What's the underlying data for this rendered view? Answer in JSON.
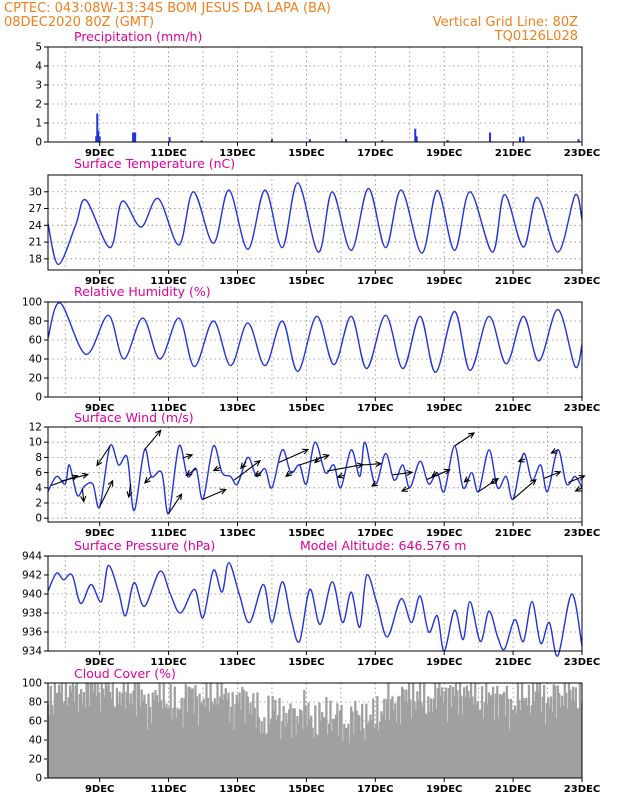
{
  "header": {
    "line1": "CPTEC:  043:08W-13:34S  BOM JESUS DA LAPA (BA)",
    "line2_left": "08DEC2020 80Z (GMT)",
    "line2_right": "Vertical Grid Line: 80Z",
    "line3_right": "TQ0126L028"
  },
  "colors": {
    "header": "#f08020",
    "panel_title": "#e0009a",
    "series": "#2233dd",
    "cloud": "#a0a0a0",
    "wind_arrow": "#000000"
  },
  "chart_data": [
    {
      "id": "precip",
      "type": "bar",
      "title": "Precipitation (mm/h)",
      "ylim": [
        0,
        5
      ],
      "yticks": [
        "0",
        "1",
        "2",
        "3",
        "4",
        "5"
      ],
      "xticks": [
        "9DEC",
        "11DEC",
        "13DEC",
        "15DEC",
        "17DEC",
        "19DEC",
        "21DEC",
        "23DEC"
      ],
      "grid": true,
      "bars": [
        {
          "day": 8.9,
          "v": 0.3
        },
        {
          "day": 8.93,
          "v": 1.5
        },
        {
          "day": 8.96,
          "v": 0.6
        },
        {
          "day": 9.0,
          "v": 0.3
        },
        {
          "day": 9.97,
          "v": 0.5
        },
        {
          "day": 10.0,
          "v": 0.5
        },
        {
          "day": 10.03,
          "v": 0.5
        },
        {
          "day": 11.03,
          "v": 0.25
        },
        {
          "day": 11.96,
          "v": 0.08
        },
        {
          "day": 14.0,
          "v": 0.15
        },
        {
          "day": 15.1,
          "v": 0.15
        },
        {
          "day": 16.15,
          "v": 0.15
        },
        {
          "day": 17.2,
          "v": 0.1
        },
        {
          "day": 18.16,
          "v": 0.7
        },
        {
          "day": 18.2,
          "v": 0.3
        },
        {
          "day": 19.1,
          "v": 0.1
        },
        {
          "day": 20.33,
          "v": 0.5
        },
        {
          "day": 21.2,
          "v": 0.25
        },
        {
          "day": 21.3,
          "v": 0.3
        },
        {
          "day": 22.9,
          "v": 0.15
        }
      ]
    },
    {
      "id": "temp",
      "type": "line",
      "title": "Surface Temperature (nC)",
      "ylim": [
        16,
        33
      ],
      "yticks": [
        "18",
        "21",
        "24",
        "27",
        "30"
      ],
      "xticks": [
        "9DEC",
        "11DEC",
        "13DEC",
        "15DEC",
        "17DEC",
        "19DEC",
        "21DEC",
        "23DEC"
      ],
      "grid": true,
      "points": [
        [
          7.5,
          24.3
        ],
        [
          7.8,
          17.0
        ],
        [
          8.3,
          24.0
        ],
        [
          8.6,
          28.5
        ],
        [
          9.3,
          20.0
        ],
        [
          9.65,
          28.3
        ],
        [
          10.2,
          23.7
        ],
        [
          10.7,
          28.8
        ],
        [
          11.3,
          20.5
        ],
        [
          11.72,
          30.0
        ],
        [
          12.3,
          20.8
        ],
        [
          12.75,
          30.3
        ],
        [
          13.3,
          19.7
        ],
        [
          13.8,
          30.3
        ],
        [
          14.3,
          20.0
        ],
        [
          14.75,
          31.6
        ],
        [
          15.35,
          19.2
        ],
        [
          15.75,
          30.0
        ],
        [
          16.3,
          19.5
        ],
        [
          16.8,
          30.6
        ],
        [
          17.3,
          20.0
        ],
        [
          17.75,
          30.3
        ],
        [
          18.35,
          19.0
        ],
        [
          18.8,
          30.2
        ],
        [
          19.3,
          19.5
        ],
        [
          19.75,
          30.0
        ],
        [
          20.4,
          19.2
        ],
        [
          20.75,
          29.5
        ],
        [
          21.3,
          20.1
        ],
        [
          21.7,
          29.0
        ],
        [
          22.3,
          19.2
        ],
        [
          22.8,
          29.4
        ],
        [
          23.0,
          25.0
        ]
      ]
    },
    {
      "id": "rh",
      "type": "line",
      "title": "Relative Humidity (%)",
      "ylim": [
        0,
        100
      ],
      "yticks": [
        "0",
        "20",
        "40",
        "60",
        "80",
        "100"
      ],
      "xticks": [
        "9DEC",
        "11DEC",
        "13DEC",
        "15DEC",
        "17DEC",
        "19DEC",
        "21DEC",
        "23DEC"
      ],
      "grid": true,
      "points": [
        [
          7.5,
          62
        ],
        [
          7.85,
          99
        ],
        [
          8.6,
          45
        ],
        [
          9.25,
          86
        ],
        [
          9.7,
          40
        ],
        [
          10.25,
          83
        ],
        [
          10.75,
          40
        ],
        [
          11.3,
          83
        ],
        [
          11.75,
          32
        ],
        [
          12.3,
          80
        ],
        [
          12.8,
          33
        ],
        [
          13.3,
          78
        ],
        [
          13.8,
          33
        ],
        [
          14.3,
          80
        ],
        [
          14.75,
          27
        ],
        [
          15.3,
          85
        ],
        [
          15.8,
          34
        ],
        [
          16.3,
          85
        ],
        [
          16.75,
          30
        ],
        [
          17.3,
          86
        ],
        [
          17.8,
          30
        ],
        [
          18.3,
          85
        ],
        [
          18.75,
          26
        ],
        [
          19.3,
          90
        ],
        [
          19.75,
          28
        ],
        [
          20.3,
          85
        ],
        [
          20.8,
          35
        ],
        [
          21.3,
          85
        ],
        [
          21.75,
          38
        ],
        [
          22.3,
          92
        ],
        [
          22.8,
          32
        ],
        [
          23.0,
          55
        ]
      ]
    },
    {
      "id": "wind",
      "type": "line",
      "title": "Surface Wind (m/s)",
      "ylim": [
        -0.5,
        12
      ],
      "yticks": [
        "0",
        "2",
        "4",
        "6",
        "8",
        "10",
        "12"
      ],
      "xticks": [
        "9DEC",
        "11DEC",
        "13DEC",
        "15DEC",
        "17DEC",
        "19DEC",
        "21DEC",
        "23DEC"
      ],
      "grid": true,
      "points": [
        [
          7.5,
          3.5
        ],
        [
          7.75,
          5.5
        ],
        [
          8.0,
          4.5
        ],
        [
          8.12,
          7.0
        ],
        [
          8.35,
          3.0
        ],
        [
          8.55,
          4.2
        ],
        [
          8.8,
          4.5
        ],
        [
          9.0,
          1.5
        ],
        [
          9.3,
          9.5
        ],
        [
          9.55,
          7.0
        ],
        [
          9.8,
          8.0
        ],
        [
          10.0,
          1.0
        ],
        [
          10.3,
          9.0
        ],
        [
          10.5,
          5.5
        ],
        [
          10.8,
          6.0
        ],
        [
          11.0,
          0.6
        ],
        [
          11.3,
          9.5
        ],
        [
          11.55,
          5.5
        ],
        [
          11.8,
          6.5
        ],
        [
          12.0,
          2.5
        ],
        [
          12.3,
          9.5
        ],
        [
          12.55,
          6.0
        ],
        [
          12.8,
          5.5
        ],
        [
          13.0,
          4.5
        ],
        [
          13.3,
          8.0
        ],
        [
          13.55,
          5.5
        ],
        [
          13.8,
          6.5
        ],
        [
          14.0,
          4.0
        ],
        [
          14.3,
          9.0
        ],
        [
          14.55,
          6.0
        ],
        [
          14.8,
          7.0
        ],
        [
          15.0,
          4.5
        ],
        [
          15.25,
          10.0
        ],
        [
          15.55,
          6.0
        ],
        [
          15.8,
          7.0
        ],
        [
          16.0,
          4.0
        ],
        [
          16.3,
          9.0
        ],
        [
          16.55,
          5.5
        ],
        [
          16.7,
          10.0
        ],
        [
          17.0,
          4.5
        ],
        [
          17.3,
          8.5
        ],
        [
          17.55,
          5.0
        ],
        [
          17.8,
          7.0
        ],
        [
          18.0,
          4.0
        ],
        [
          18.3,
          7.5
        ],
        [
          18.55,
          4.5
        ],
        [
          18.8,
          6.0
        ],
        [
          19.0,
          3.5
        ],
        [
          19.3,
          9.5
        ],
        [
          19.55,
          4.0
        ],
        [
          19.8,
          6.0
        ],
        [
          20.0,
          3.5
        ],
        [
          20.3,
          9.0
        ],
        [
          20.55,
          4.0
        ],
        [
          20.8,
          5.5
        ],
        [
          21.0,
          2.5
        ],
        [
          21.3,
          8.5
        ],
        [
          21.55,
          5.0
        ],
        [
          21.8,
          7.0
        ],
        [
          22.0,
          3.5
        ],
        [
          22.3,
          9.0
        ],
        [
          22.55,
          4.5
        ],
        [
          22.8,
          5.5
        ],
        [
          23.0,
          4.0
        ]
      ],
      "arrows": [
        {
          "day": 7.6,
          "u": 4,
          "v": 1.5
        },
        {
          "day": 7.9,
          "u": 4,
          "v": 1
        },
        {
          "day": 8.5,
          "u": 0.2,
          "v": -2
        },
        {
          "day": 9.0,
          "u": 2,
          "v": 4
        },
        {
          "day": 9.3,
          "u": -2,
          "v": -3
        },
        {
          "day": 9.9,
          "u": -0.3,
          "v": -2
        },
        {
          "day": 10.3,
          "u": 2.5,
          "v": 3
        },
        {
          "day": 10.5,
          "u": -1,
          "v": -1
        },
        {
          "day": 11.0,
          "u": 2,
          "v": 3
        },
        {
          "day": 11.4,
          "u": 1.5,
          "v": 0.5
        },
        {
          "day": 11.8,
          "u": -1.5,
          "v": -1
        },
        {
          "day": 12.0,
          "u": 3.5,
          "v": 1.5
        },
        {
          "day": 12.5,
          "u": -1,
          "v": -0.5
        },
        {
          "day": 12.9,
          "u": 4,
          "v": 3
        },
        {
          "day": 13.25,
          "u": -0.8,
          "v": -1
        },
        {
          "day": 13.7,
          "u": -1,
          "v": -0.6
        },
        {
          "day": 14.2,
          "u": 4.5,
          "v": 2
        },
        {
          "day": 14.6,
          "u": -1,
          "v": -0.8
        },
        {
          "day": 14.8,
          "u": 4.5,
          "v": 1.5
        },
        {
          "day": 15.4,
          "u": -0.8,
          "v": -0.8
        },
        {
          "day": 15.6,
          "u": 5.5,
          "v": 1
        },
        {
          "day": 16.1,
          "u": -1,
          "v": -0.3
        },
        {
          "day": 16.6,
          "u": 3,
          "v": 0.2
        },
        {
          "day": 17.0,
          "u": -0.5,
          "v": -0.3
        },
        {
          "day": 17.5,
          "u": 3,
          "v": 0.4
        },
        {
          "day": 18.0,
          "u": -1.2,
          "v": -0.5
        },
        {
          "day": 18.5,
          "u": 3.5,
          "v": 1.5
        },
        {
          "day": 18.8,
          "u": -0.8,
          "v": -0.6
        },
        {
          "day": 19.3,
          "u": 3,
          "v": 2
        },
        {
          "day": 19.7,
          "u": -0.6,
          "v": -0.5
        },
        {
          "day": 20.0,
          "u": 3,
          "v": 2
        },
        {
          "day": 20.5,
          "u": -0.8,
          "v": -0.5
        },
        {
          "day": 21.0,
          "u": 3.5,
          "v": 3
        },
        {
          "day": 21.35,
          "u": -1,
          "v": -0.4
        },
        {
          "day": 21.9,
          "u": 2.5,
          "v": 1
        },
        {
          "day": 22.3,
          "u": -1,
          "v": -0.5
        },
        {
          "day": 22.6,
          "u": 2.5,
          "v": 1
        },
        {
          "day": 23.0,
          "u": -1,
          "v": -0.5
        }
      ]
    },
    {
      "id": "pressure",
      "type": "line",
      "title": "Surface Pressure (hPa)",
      "annotation": "Model Altitude: 646.576 m",
      "ylim": [
        934,
        944
      ],
      "yticks": [
        "934",
        "936",
        "938",
        "940",
        "942",
        "944"
      ],
      "xticks": [
        "9DEC",
        "11DEC",
        "13DEC",
        "15DEC",
        "17DEC",
        "19DEC",
        "21DEC",
        "23DEC"
      ],
      "grid": true,
      "points": [
        [
          7.5,
          940.3
        ],
        [
          7.75,
          942.2
        ],
        [
          7.95,
          941.5
        ],
        [
          8.2,
          942.0
        ],
        [
          8.45,
          939.0
        ],
        [
          8.75,
          941.0
        ],
        [
          9.05,
          939.2
        ],
        [
          9.25,
          943.0
        ],
        [
          9.55,
          940.2
        ],
        [
          9.75,
          937.7
        ],
        [
          10.0,
          941.2
        ],
        [
          10.3,
          938.7
        ],
        [
          10.75,
          942.4
        ],
        [
          11.05,
          940.0
        ],
        [
          11.35,
          938.0
        ],
        [
          11.75,
          940.5
        ],
        [
          12.0,
          937.5
        ],
        [
          12.3,
          942.5
        ],
        [
          12.55,
          940.2
        ],
        [
          12.75,
          943.3
        ],
        [
          13.05,
          940.0
        ],
        [
          13.35,
          937.0
        ],
        [
          13.75,
          941.0
        ],
        [
          14.0,
          937.0
        ],
        [
          14.3,
          941.3
        ],
        [
          14.55,
          937.5
        ],
        [
          14.8,
          935.0
        ],
        [
          15.1,
          940.5
        ],
        [
          15.4,
          936.8
        ],
        [
          15.75,
          941.3
        ],
        [
          16.05,
          937.0
        ],
        [
          16.3,
          940.2
        ],
        [
          16.55,
          936.5
        ],
        [
          16.75,
          942.0
        ],
        [
          17.05,
          939.0
        ],
        [
          17.35,
          935.5
        ],
        [
          17.75,
          939.5
        ],
        [
          18.05,
          937.0
        ],
        [
          18.3,
          939.8
        ],
        [
          18.55,
          936.0
        ],
        [
          18.8,
          937.7
        ],
        [
          19.0,
          934.0
        ],
        [
          19.3,
          938.3
        ],
        [
          19.55,
          935.2
        ],
        [
          19.75,
          939.2
        ],
        [
          20.05,
          935.0
        ],
        [
          20.3,
          938.2
        ],
        [
          20.55,
          935.5
        ],
        [
          20.75,
          934.2
        ],
        [
          21.05,
          937.3
        ],
        [
          21.3,
          935.0
        ],
        [
          21.55,
          939.2
        ],
        [
          21.8,
          934.8
        ],
        [
          22.05,
          937.0
        ],
        [
          22.3,
          933.5
        ],
        [
          22.7,
          940.0
        ],
        [
          23.0,
          934.5
        ]
      ]
    },
    {
      "id": "cloud",
      "type": "area",
      "title": "Cloud Cover (%)",
      "ylim": [
        0,
        100
      ],
      "yticks": [
        "0",
        "20",
        "40",
        "60",
        "80",
        "100"
      ],
      "xticks": [
        "9DEC",
        "11DEC",
        "13DEC",
        "15DEC",
        "17DEC",
        "19DEC",
        "21DEC",
        "23DEC"
      ],
      "grid": true,
      "envelope": [
        [
          7.5,
          82
        ],
        [
          8.0,
          95
        ],
        [
          8.4,
          88
        ],
        [
          8.8,
          97
        ],
        [
          9.3,
          95
        ],
        [
          9.6,
          85
        ],
        [
          10.0,
          92
        ],
        [
          10.4,
          75
        ],
        [
          10.8,
          90
        ],
        [
          11.2,
          70
        ],
        [
          11.6,
          88
        ],
        [
          12.0,
          80
        ],
        [
          12.5,
          92
        ],
        [
          12.9,
          75
        ],
        [
          13.3,
          85
        ],
        [
          13.7,
          55
        ],
        [
          14.1,
          72
        ],
        [
          14.5,
          60
        ],
        [
          14.9,
          70
        ],
        [
          15.3,
          58
        ],
        [
          15.7,
          68
        ],
        [
          16.1,
          55
        ],
        [
          16.5,
          65
        ],
        [
          16.9,
          60
        ],
        [
          17.3,
          75
        ],
        [
          17.7,
          80
        ],
        [
          18.1,
          88
        ],
        [
          18.5,
          78
        ],
        [
          18.9,
          92
        ],
        [
          19.3,
          85
        ],
        [
          19.7,
          93
        ],
        [
          20.1,
          80
        ],
        [
          20.5,
          88
        ],
        [
          20.9,
          75
        ],
        [
          21.3,
          85
        ],
        [
          21.7,
          90
        ],
        [
          22.1,
          78
        ],
        [
          22.5,
          92
        ],
        [
          22.8,
          85
        ],
        [
          23.0,
          95
        ]
      ]
    }
  ]
}
